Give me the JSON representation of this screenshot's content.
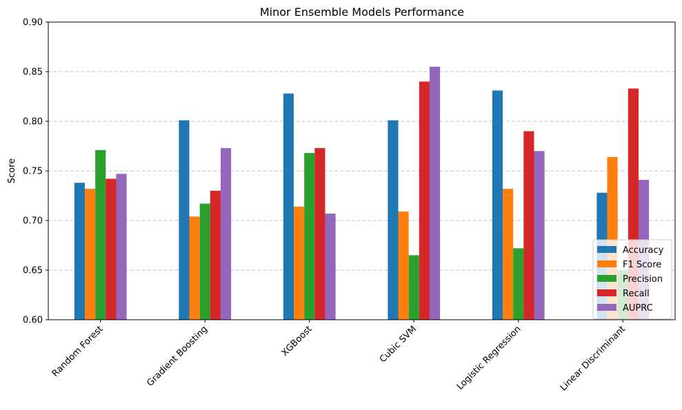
{
  "chart_data": {
    "type": "bar",
    "title": "Minor Ensemble Models Performance",
    "xlabel": "",
    "ylabel": "Score",
    "ylim": [
      0.6,
      0.9
    ],
    "yticks": [
      "0.60",
      "0.65",
      "0.70",
      "0.75",
      "0.80",
      "0.85",
      "0.90"
    ],
    "grid": "y-axis dashed",
    "legend_position": "bottom-right",
    "categories": [
      "Random Forest",
      "Gradient Boosting",
      "XGBoost",
      "Cubic SVM",
      "Logistic Regression",
      "Linear Discriminant"
    ],
    "series": [
      {
        "name": "Accuracy",
        "color": "#1f77b4",
        "values": [
          0.738,
          0.801,
          0.828,
          0.801,
          0.831,
          0.728
        ]
      },
      {
        "name": "F1 Score",
        "color": "#ff7f0e",
        "values": [
          0.732,
          0.704,
          0.714,
          0.709,
          0.732,
          0.764
        ]
      },
      {
        "name": "Precision",
        "color": "#2ca02c",
        "values": [
          0.771,
          0.717,
          0.768,
          0.665,
          0.672,
          0.65
        ]
      },
      {
        "name": "Recall",
        "color": "#d62728",
        "values": [
          0.742,
          0.73,
          0.773,
          0.84,
          0.79,
          0.833
        ]
      },
      {
        "name": "AUPRC",
        "color": "#9467bd",
        "values": [
          0.747,
          0.773,
          0.707,
          0.855,
          0.77,
          0.741
        ]
      }
    ]
  }
}
